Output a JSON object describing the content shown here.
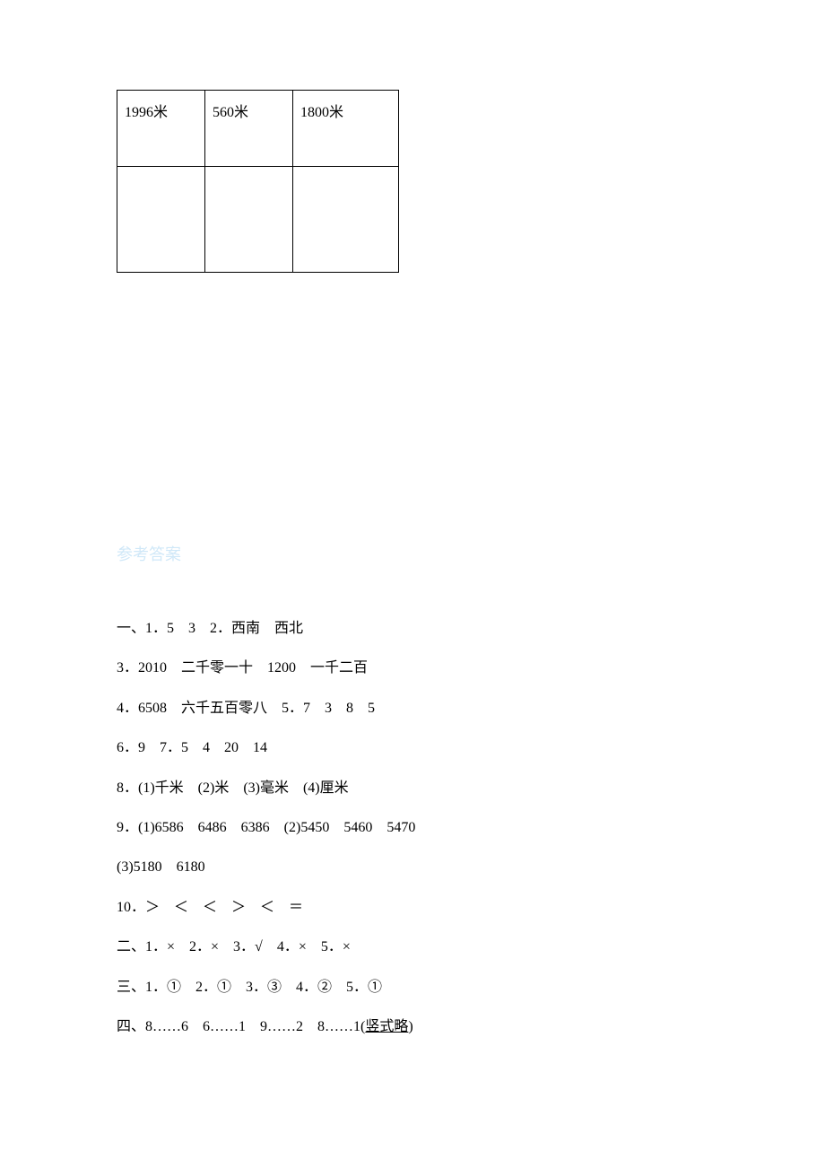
{
  "table": {
    "row1": {
      "cell1": "1996米",
      "cell2": "560米",
      "cell3": "1800米"
    }
  },
  "answer_label": "参考答案",
  "answers": {
    "line1": "一、1．5　3　2．西南　西北",
    "line2": "3．2010　二千零一十　1200　一千二百",
    "line3": "4．6508　六千五百零八　5．7　3　8　5",
    "line4": "6．9　7．5　4　20　14",
    "line5": "8．(1)千米　(2)米　(3)毫米　(4)厘米",
    "line6": "9．(1)6586　6486　6386　(2)5450　5460　5470",
    "line7": "(3)5180　6180",
    "line8": "10．＞　＜　＜　＞　＜　＝",
    "line9": "二、1．×　2．×　3．√　4．×　5．×",
    "line10": "三、1．①　2．①　3．③　4．②　5．①",
    "line11_prefix": "四、8……6　6……1　9……2　8……1(",
    "line11_underline": "竖式略",
    "line11_suffix": ")"
  }
}
